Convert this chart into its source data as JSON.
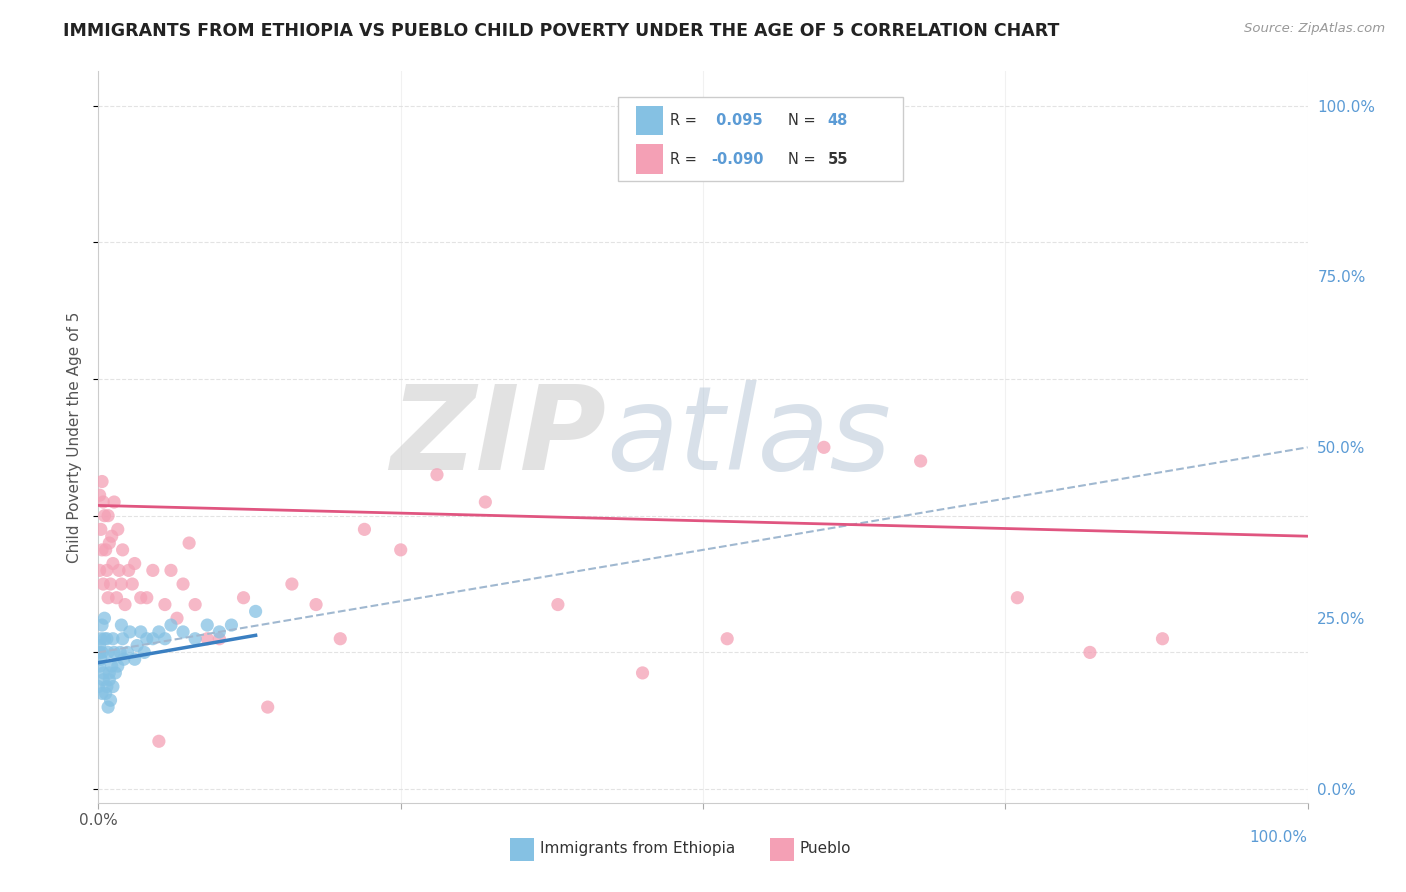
{
  "title": "IMMIGRANTS FROM ETHIOPIA VS PUEBLO CHILD POVERTY UNDER THE AGE OF 5 CORRELATION CHART",
  "source": "Source: ZipAtlas.com",
  "ylabel": "Child Poverty Under the Age of 5",
  "xlim": [
    0.0,
    1.0
  ],
  "ylim": [
    -0.02,
    1.05
  ],
  "yticks": [
    0.0,
    0.25,
    0.5,
    0.75,
    1.0
  ],
  "ytick_labels": [
    "0.0%",
    "25.0%",
    "50.0%",
    "75.0%",
    "100.0%"
  ],
  "legend_R1": "0.095",
  "legend_N1": "48",
  "legend_R2": "-0.090",
  "legend_N2": "55",
  "blue_color": "#85c1e3",
  "pink_color": "#f4a0b5",
  "blue_trend_color": "#3a7fc1",
  "pink_trend_color": "#e05580",
  "dashed_trend_color": "#a0b8d0",
  "background_color": "#ffffff",
  "grid_color": "#dddddd",
  "title_color": "#222222",
  "axis_label_color": "#555555",
  "right_label_color": "#5b9bd5",
  "blue_x": [
    0.002,
    0.001,
    0.003,
    0.001,
    0.0,
    0.004,
    0.003,
    0.005,
    0.005,
    0.003,
    0.004,
    0.002,
    0.001,
    0.008,
    0.007,
    0.009,
    0.006,
    0.008,
    0.01,
    0.009,
    0.007,
    0.012,
    0.011,
    0.013,
    0.014,
    0.012,
    0.016,
    0.018,
    0.019,
    0.021,
    0.02,
    0.024,
    0.026,
    0.03,
    0.032,
    0.035,
    0.038,
    0.04,
    0.045,
    0.05,
    0.055,
    0.06,
    0.07,
    0.08,
    0.09,
    0.1,
    0.11,
    0.13
  ],
  "blue_y": [
    0.22,
    0.18,
    0.24,
    0.2,
    0.15,
    0.17,
    0.2,
    0.22,
    0.25,
    0.14,
    0.16,
    0.19,
    0.21,
    0.12,
    0.15,
    0.17,
    0.14,
    0.2,
    0.13,
    0.16,
    0.22,
    0.15,
    0.18,
    0.2,
    0.17,
    0.22,
    0.18,
    0.2,
    0.24,
    0.19,
    0.22,
    0.2,
    0.23,
    0.19,
    0.21,
    0.23,
    0.2,
    0.22,
    0.22,
    0.23,
    0.22,
    0.24,
    0.23,
    0.22,
    0.24,
    0.23,
    0.24,
    0.26
  ],
  "pink_x": [
    0.001,
    0.002,
    0.001,
    0.003,
    0.004,
    0.003,
    0.005,
    0.004,
    0.006,
    0.008,
    0.007,
    0.009,
    0.008,
    0.01,
    0.012,
    0.011,
    0.013,
    0.015,
    0.017,
    0.016,
    0.019,
    0.02,
    0.022,
    0.025,
    0.028,
    0.03,
    0.035,
    0.04,
    0.045,
    0.05,
    0.055,
    0.06,
    0.065,
    0.07,
    0.075,
    0.08,
    0.09,
    0.1,
    0.12,
    0.14,
    0.16,
    0.18,
    0.2,
    0.22,
    0.25,
    0.28,
    0.32,
    0.38,
    0.45,
    0.52,
    0.6,
    0.68,
    0.76,
    0.82,
    0.88
  ],
  "pink_y": [
    0.43,
    0.38,
    0.32,
    0.45,
    0.3,
    0.35,
    0.4,
    0.42,
    0.35,
    0.28,
    0.32,
    0.36,
    0.4,
    0.3,
    0.33,
    0.37,
    0.42,
    0.28,
    0.32,
    0.38,
    0.3,
    0.35,
    0.27,
    0.32,
    0.3,
    0.33,
    0.28,
    0.28,
    0.32,
    0.07,
    0.27,
    0.32,
    0.25,
    0.3,
    0.36,
    0.27,
    0.22,
    0.22,
    0.28,
    0.12,
    0.3,
    0.27,
    0.22,
    0.38,
    0.35,
    0.46,
    0.42,
    0.27,
    0.17,
    0.22,
    0.5,
    0.48,
    0.28,
    0.2,
    0.22
  ],
  "blue_trend_x0": 0.0,
  "blue_trend_x1": 0.13,
  "blue_trend_y0": 0.185,
  "blue_trend_y1": 0.225,
  "dashed_trend_x0": 0.0,
  "dashed_trend_x1": 1.0,
  "dashed_trend_y0": 0.2,
  "dashed_trend_y1": 0.5,
  "pink_trend_x0": 0.0,
  "pink_trend_x1": 1.0,
  "pink_trend_y0": 0.415,
  "pink_trend_y1": 0.37
}
